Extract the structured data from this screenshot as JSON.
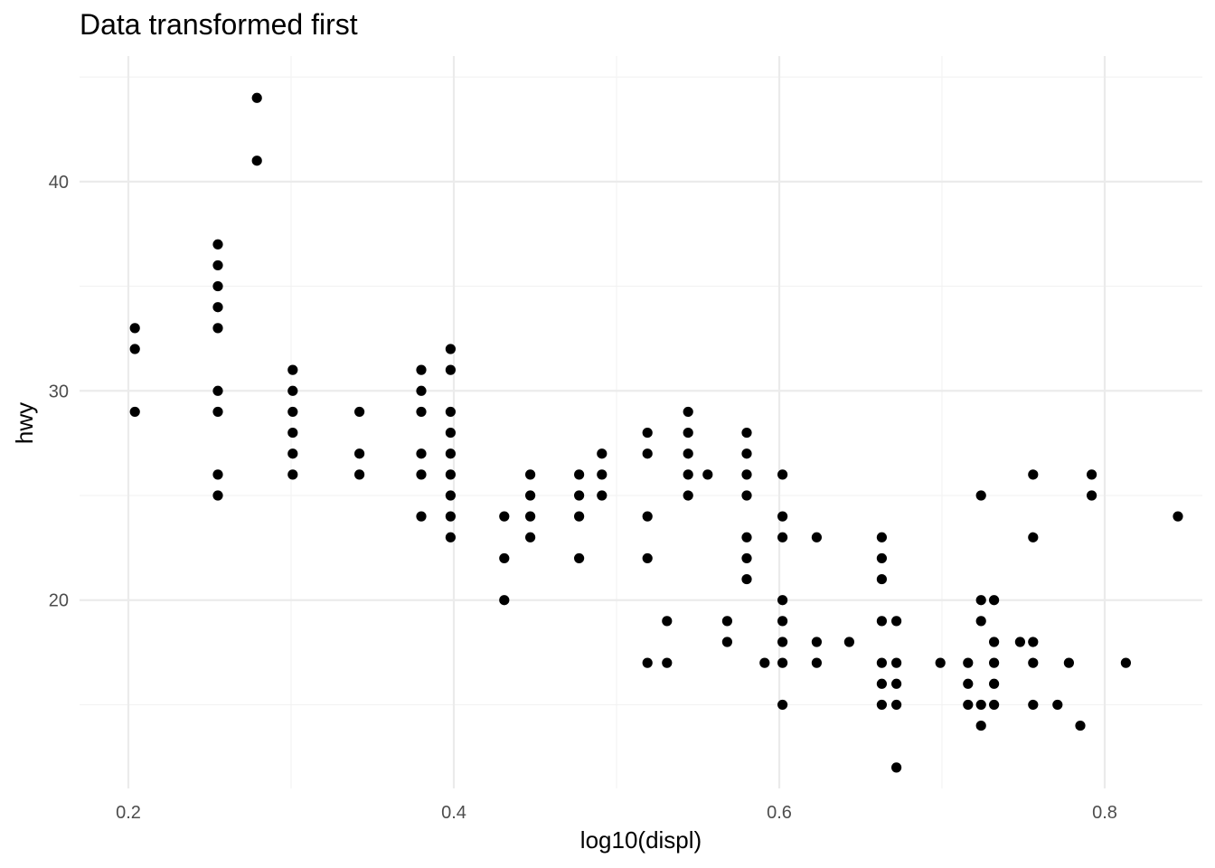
{
  "chart_data": {
    "type": "scatter",
    "title": "Data transformed first",
    "xlabel": "log10(displ)",
    "ylabel": "hwy",
    "xlim": [
      0.17,
      0.86
    ],
    "ylim": [
      11,
      46
    ],
    "x_ticks": [
      0.2,
      0.4,
      0.6,
      0.8
    ],
    "x_tick_labels": [
      "0.2",
      "0.4",
      "0.6",
      "0.8"
    ],
    "x_minor_ticks": [
      0.3,
      0.5,
      0.7
    ],
    "y_ticks": [
      20,
      30,
      40
    ],
    "y_tick_labels": [
      "20",
      "30",
      "40"
    ],
    "y_minor_ticks": [
      15,
      25,
      35,
      45
    ],
    "grid": true,
    "legend": "none",
    "point_color": "#000000",
    "points": [
      [
        0.204,
        33
      ],
      [
        0.204,
        32
      ],
      [
        0.204,
        29
      ],
      [
        0.255,
        37
      ],
      [
        0.255,
        36
      ],
      [
        0.255,
        35
      ],
      [
        0.255,
        34
      ],
      [
        0.255,
        33
      ],
      [
        0.255,
        30
      ],
      [
        0.255,
        29
      ],
      [
        0.255,
        26
      ],
      [
        0.255,
        25
      ],
      [
        0.279,
        44
      ],
      [
        0.279,
        41
      ],
      [
        0.301,
        31
      ],
      [
        0.301,
        30
      ],
      [
        0.301,
        29
      ],
      [
        0.301,
        28
      ],
      [
        0.301,
        27
      ],
      [
        0.301,
        26
      ],
      [
        0.342,
        29
      ],
      [
        0.342,
        27
      ],
      [
        0.342,
        26
      ],
      [
        0.38,
        31
      ],
      [
        0.38,
        30
      ],
      [
        0.38,
        29
      ],
      [
        0.38,
        27
      ],
      [
        0.38,
        26
      ],
      [
        0.38,
        24
      ],
      [
        0.398,
        32
      ],
      [
        0.398,
        31
      ],
      [
        0.398,
        29
      ],
      [
        0.398,
        28
      ],
      [
        0.398,
        27
      ],
      [
        0.398,
        26
      ],
      [
        0.398,
        25
      ],
      [
        0.398,
        24
      ],
      [
        0.398,
        23
      ],
      [
        0.431,
        24
      ],
      [
        0.431,
        22
      ],
      [
        0.431,
        20
      ],
      [
        0.447,
        26
      ],
      [
        0.447,
        25
      ],
      [
        0.447,
        24
      ],
      [
        0.447,
        23
      ],
      [
        0.477,
        26
      ],
      [
        0.477,
        25
      ],
      [
        0.477,
        24
      ],
      [
        0.477,
        22
      ],
      [
        0.491,
        27
      ],
      [
        0.491,
        26
      ],
      [
        0.491,
        25
      ],
      [
        0.519,
        28
      ],
      [
        0.519,
        27
      ],
      [
        0.519,
        24
      ],
      [
        0.519,
        22
      ],
      [
        0.519,
        17
      ],
      [
        0.531,
        19
      ],
      [
        0.531,
        17
      ],
      [
        0.544,
        29
      ],
      [
        0.544,
        28
      ],
      [
        0.544,
        27
      ],
      [
        0.544,
        26
      ],
      [
        0.544,
        25
      ],
      [
        0.556,
        26
      ],
      [
        0.568,
        19
      ],
      [
        0.568,
        18
      ],
      [
        0.58,
        28
      ],
      [
        0.58,
        27
      ],
      [
        0.58,
        26
      ],
      [
        0.58,
        25
      ],
      [
        0.58,
        23
      ],
      [
        0.58,
        22
      ],
      [
        0.58,
        21
      ],
      [
        0.591,
        17
      ],
      [
        0.602,
        26
      ],
      [
        0.602,
        24
      ],
      [
        0.602,
        23
      ],
      [
        0.602,
        20
      ],
      [
        0.602,
        19
      ],
      [
        0.602,
        18
      ],
      [
        0.602,
        17
      ],
      [
        0.602,
        15
      ],
      [
        0.623,
        23
      ],
      [
        0.623,
        18
      ],
      [
        0.623,
        17
      ],
      [
        0.643,
        18
      ],
      [
        0.663,
        23
      ],
      [
        0.663,
        22
      ],
      [
        0.663,
        21
      ],
      [
        0.663,
        19
      ],
      [
        0.663,
        17
      ],
      [
        0.663,
        16
      ],
      [
        0.663,
        15
      ],
      [
        0.672,
        19
      ],
      [
        0.672,
        17
      ],
      [
        0.672,
        16
      ],
      [
        0.672,
        15
      ],
      [
        0.672,
        12
      ],
      [
        0.699,
        17
      ],
      [
        0.716,
        17
      ],
      [
        0.716,
        16
      ],
      [
        0.716,
        15
      ],
      [
        0.724,
        25
      ],
      [
        0.724,
        20
      ],
      [
        0.724,
        19
      ],
      [
        0.724,
        15
      ],
      [
        0.724,
        14
      ],
      [
        0.732,
        20
      ],
      [
        0.732,
        18
      ],
      [
        0.732,
        17
      ],
      [
        0.732,
        16
      ],
      [
        0.732,
        15
      ],
      [
        0.748,
        18
      ],
      [
        0.756,
        26
      ],
      [
        0.756,
        23
      ],
      [
        0.756,
        18
      ],
      [
        0.756,
        17
      ],
      [
        0.756,
        15
      ],
      [
        0.771,
        15
      ],
      [
        0.778,
        17
      ],
      [
        0.785,
        14
      ],
      [
        0.792,
        26
      ],
      [
        0.792,
        25
      ],
      [
        0.813,
        17
      ],
      [
        0.845,
        24
      ]
    ]
  }
}
